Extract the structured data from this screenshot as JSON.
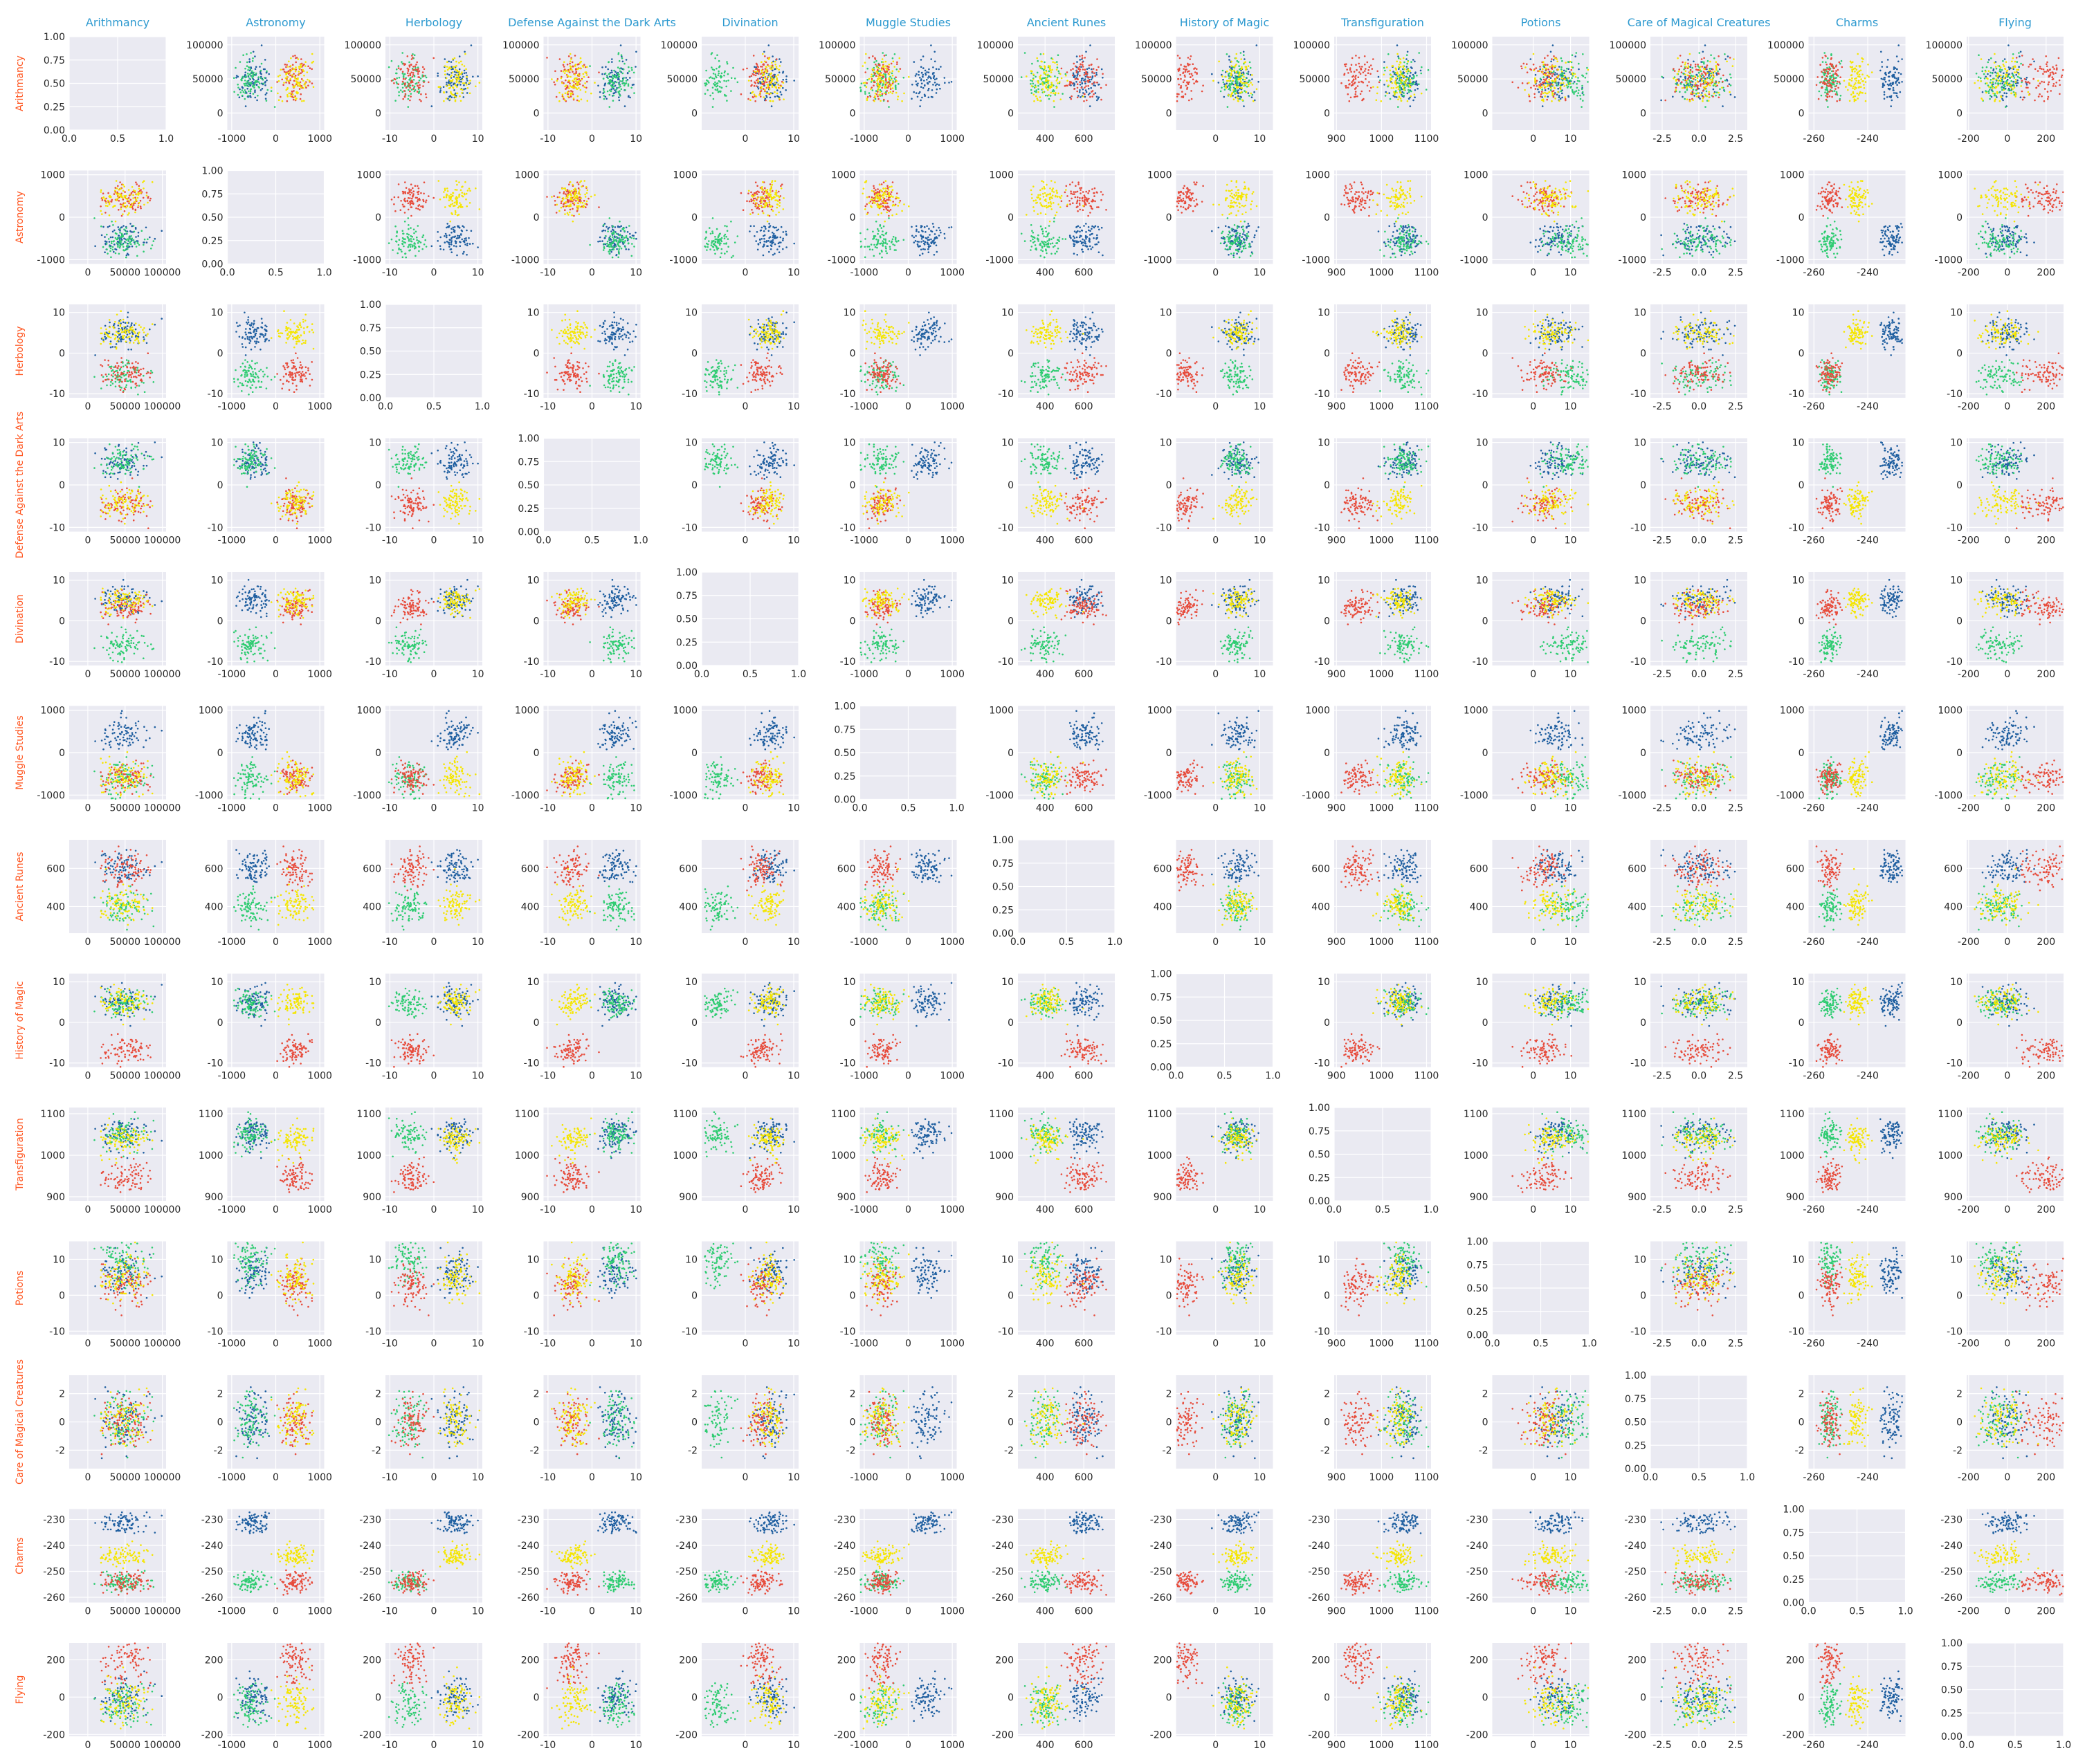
{
  "colors": {
    "title": "#2e9ad0",
    "row_label": "#ff5722",
    "panel_bg": "#eaeaf2",
    "grid": "#ffffff",
    "tick_text": "#262626",
    "houses": {
      "blue": "#1f5fa0",
      "green": "#2ecc71",
      "red": "#e74c3c",
      "yellow": "#f5e600"
    }
  },
  "chart_data": {
    "type": "scatter",
    "layout": "pair-plot-grid",
    "grid": true,
    "diagonal": "empty",
    "features": [
      "Arithmancy",
      "Astronomy",
      "Herbology",
      "Defense Against the Dark Arts",
      "Divination",
      "Muggle Studies",
      "Ancient Runes",
      "History of Magic",
      "Transfiguration",
      "Potions",
      "Care of Magical Creatures",
      "Charms",
      "Flying"
    ],
    "axes": {
      "Arithmancy": {
        "range": [
          -25000,
          105000
        ],
        "ticks": [
          "0",
          "50000",
          "100000"
        ]
      },
      "Astronomy": {
        "range": [
          -1100,
          1100
        ],
        "ticks": [
          "-1000",
          "0",
          "1000"
        ]
      },
      "Herbology": {
        "range": [
          -11,
          11
        ],
        "ticks": [
          "-10",
          "0",
          "10"
        ]
      },
      "Defense Against the Dark Arts": {
        "range": [
          -11,
          11
        ],
        "ticks": [
          "-10",
          "0",
          "10"
        ]
      },
      "Divination": {
        "range": [
          -9,
          11
        ],
        "ticks": [
          "0",
          "10"
        ]
      },
      "Muggle Studies": {
        "range": [
          -1100,
          1100
        ],
        "ticks": [
          "-1000",
          "0",
          "1000"
        ]
      },
      "Ancient Runes": {
        "range": [
          260,
          760
        ],
        "ticks": [
          "400",
          "600"
        ]
      },
      "History of Magic": {
        "range": [
          -9,
          13
        ],
        "ticks": [
          "0",
          "10"
        ]
      },
      "Transfiguration": {
        "range": [
          895,
          1110
        ],
        "ticks": [
          "900",
          "1000",
          "1100"
        ]
      },
      "Potions": {
        "range": [
          -11,
          15
        ],
        "ticks": [
          "0",
          "10"
        ]
      },
      "Care of Magical Creatures": {
        "range": [
          -3.3,
          3.3
        ],
        "ticks": [
          "-2.5",
          "0.0",
          "2.5"
        ]
      },
      "Charms": {
        "range": [
          -262,
          -226
        ],
        "ticks": [
          "-260",
          "-240"
        ]
      },
      "Flying": {
        "range": [
          -210,
          290
        ],
        "ticks": [
          "-200",
          "0",
          "200"
        ]
      }
    },
    "row_axes": {
      "Arithmancy": {
        "range": [
          -25000,
          112000
        ],
        "ticks": [
          "0",
          "50000",
          "100000"
        ]
      },
      "Astronomy": {
        "range": [
          -1100,
          1100
        ],
        "ticks": [
          "-1000",
          "0",
          "1000"
        ]
      },
      "Herbology": {
        "range": [
          -11,
          12
        ],
        "ticks": [
          "-10",
          "0",
          "10"
        ]
      },
      "Defense Against the Dark Arts": {
        "range": [
          -11,
          11
        ],
        "ticks": [
          "-10",
          "0",
          "10"
        ]
      },
      "Divination": {
        "range": [
          -11,
          12
        ],
        "ticks": [
          "-10",
          "0",
          "10"
        ]
      },
      "Muggle Studies": {
        "range": [
          -1100,
          1100
        ],
        "ticks": [
          "-1000",
          "0",
          "1000"
        ]
      },
      "Ancient Runes": {
        "range": [
          260,
          750
        ],
        "ticks": [
          "400",
          "600"
        ]
      },
      "History of Magic": {
        "range": [
          -11,
          12
        ],
        "ticks": [
          "-10",
          "0",
          "10"
        ]
      },
      "Transfiguration": {
        "range": [
          890,
          1115
        ],
        "ticks": [
          "900",
          "1000",
          "1100"
        ]
      },
      "Potions": {
        "range": [
          -11,
          15
        ],
        "ticks": [
          "-10",
          "0",
          "10"
        ]
      },
      "Care of Magical Creatures": {
        "range": [
          -3.3,
          3.3
        ],
        "ticks": [
          "-2",
          "0",
          "2"
        ]
      },
      "Charms": {
        "range": [
          -262,
          -226
        ],
        "ticks": [
          "-260",
          "-250",
          "-240",
          "-230"
        ]
      },
      "Flying": {
        "range": [
          -210,
          290
        ],
        "ticks": [
          "-200",
          "0",
          "200"
        ]
      }
    },
    "diagonal_axes": {
      "ticks": [
        "0.00",
        "0.25",
        "0.50",
        "0.75",
        "1.00"
      ],
      "x_ticks": [
        "0.0",
        "0.5",
        "1.0"
      ]
    },
    "houses": [
      {
        "color": "blue",
        "means": [
          49000,
          -500,
          4.5,
          5.0,
          5.2,
          400,
          600,
          5.0,
          1050,
          6.5,
          0.0,
          -231,
          0
        ]
      },
      {
        "color": "green",
        "means": [
          48000,
          -550,
          -5.5,
          5.5,
          -6.0,
          -600,
          390,
          4.5,
          1050,
          9.5,
          0.0,
          -254,
          -50
        ]
      },
      {
        "color": "red",
        "means": [
          52000,
          450,
          -5.5,
          -4.5,
          3.5,
          -550,
          590,
          -7.0,
          950,
          2.5,
          0.0,
          -254,
          200
        ]
      },
      {
        "color": "yellow",
        "means": [
          49000,
          450,
          5.0,
          -4.5,
          5.0,
          -600,
          410,
          5.0,
          1040,
          5.0,
          0.0,
          -244,
          -20
        ]
      }
    ],
    "spreads": [
      16000,
      180,
      1.8,
      1.8,
      1.6,
      200,
      45,
      1.8,
      20,
      3.0,
      1.0,
      2.0,
      60
    ],
    "points_per_house": 90
  }
}
